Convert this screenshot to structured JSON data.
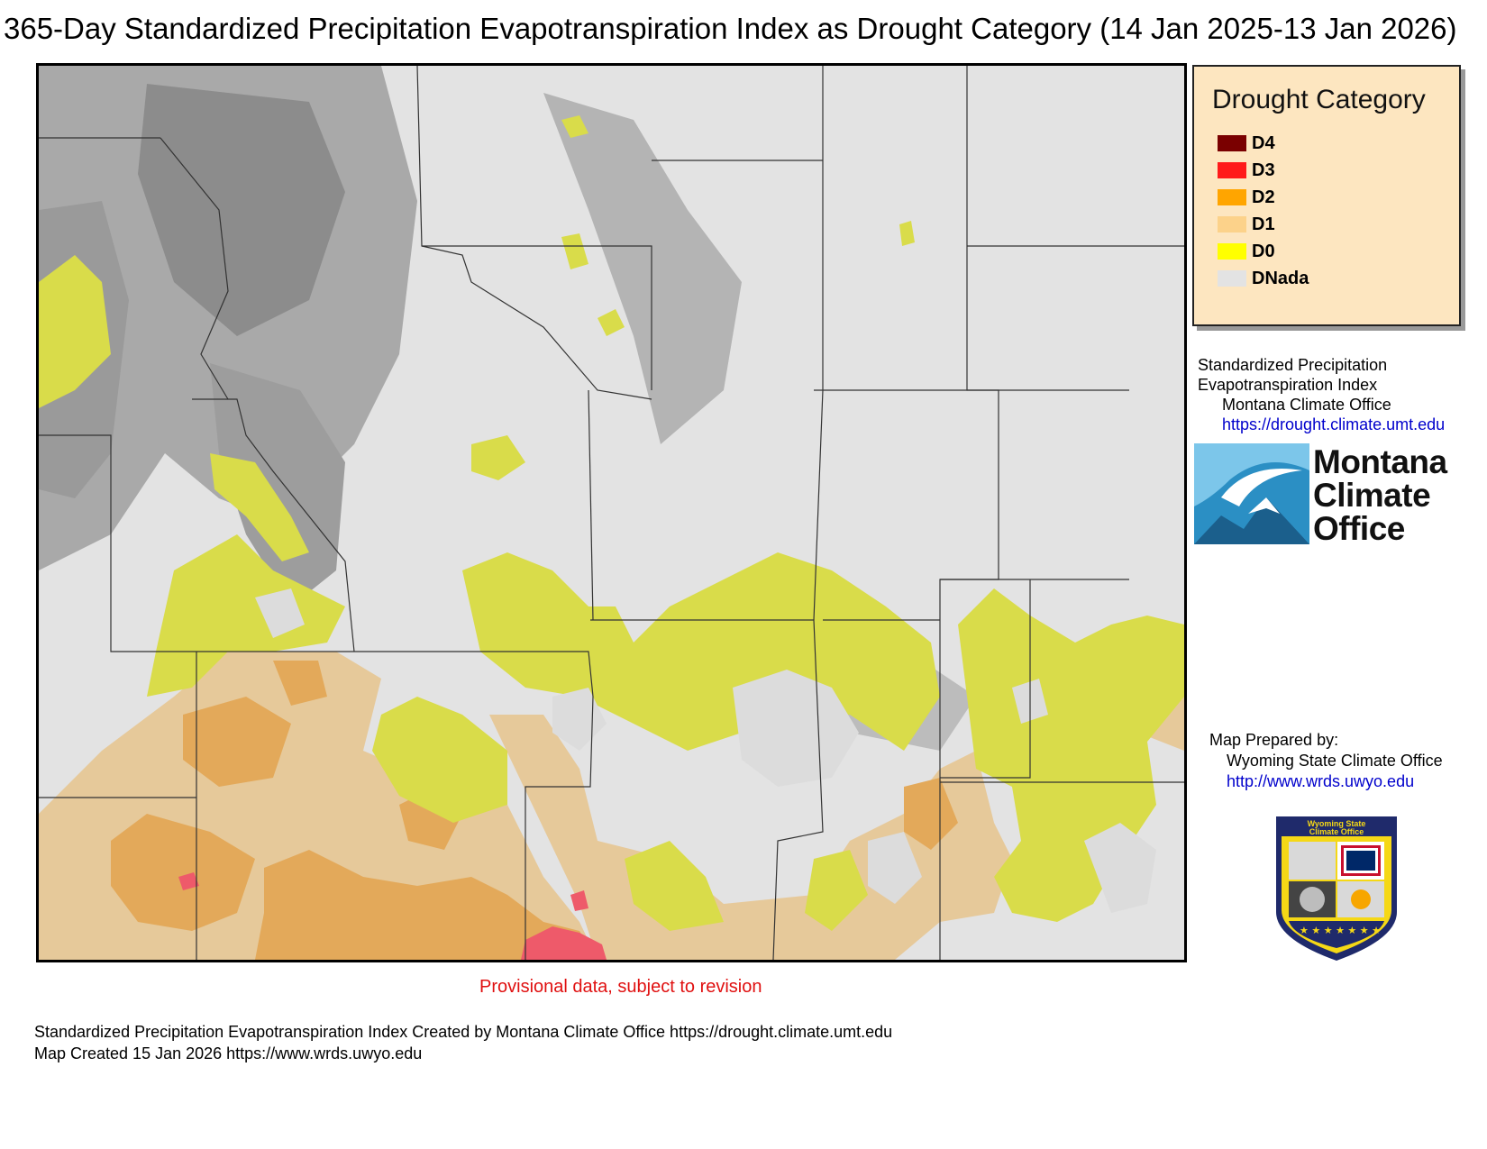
{
  "title": "365-Day Standardized Precipitation Evapotranspiration Index as Drought Category (14 Jan 2025-13 Jan 2026)",
  "legend": {
    "title": "Drought Category",
    "items": [
      {
        "label": "D4",
        "color": "#7a0000"
      },
      {
        "label": "D3",
        "color": "#ff1a1a"
      },
      {
        "label": "D2",
        "color": "#ffa500"
      },
      {
        "label": "D1",
        "color": "#fcd28a"
      },
      {
        "label": "D0",
        "color": "#ffff00"
      },
      {
        "label": "DNada",
        "color": "#e3e3e3"
      }
    ]
  },
  "spei_credit": {
    "line1": "Standardized Precipitation",
    "line2": "Evapotranspiration Index",
    "line3": "Montana Climate Office",
    "url": "https://drought.climate.umt.edu"
  },
  "mco_logo": {
    "line1": "Montana",
    "line2": "Climate",
    "line3": "Office"
  },
  "prepared_by": {
    "label": "Map Prepared by:",
    "org": "Wyoming State Climate Office",
    "url": "http://www.wrds.uwyo.edu"
  },
  "wsco_badge": {
    "line1": "Wyoming State",
    "line2": "Climate Office"
  },
  "provisional_note": "Provisional data, subject to revision",
  "footer": {
    "line1": "Standardized Precipitation Evapotranspiration Index Created by Montana Climate Office https://drought.climate.umt.edu",
    "line2": "Map Created 15 Jan 2026 https://www.wrds.uwyo.edu"
  },
  "colors": {
    "map_background": "#e3e3e3",
    "mountain_shading": "#8f8f8f",
    "county_lines": "#333333",
    "link": "#0000cc",
    "provisional": "#e01010",
    "legend_background": "#fde6c0"
  }
}
